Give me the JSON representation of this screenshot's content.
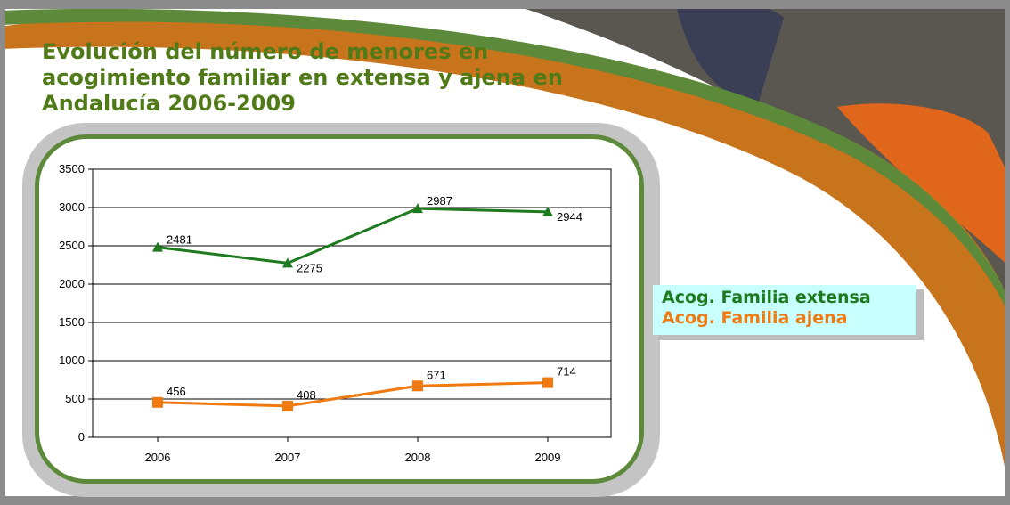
{
  "title": "Evolución del número de menores en acogimiento familiar en extensa y ajena en Andalucía 2006-2009",
  "colors": {
    "title": "#4f7a17",
    "extensa": "#1e7a1e",
    "ajena": "#f07a10",
    "frame_green": "#5c8a3a",
    "frame_gray": "#c4c4c4",
    "legend_bg": "#c8ffff"
  },
  "legend": {
    "items": [
      {
        "label": "Acog. Familia extensa",
        "color": "#1e7a1e"
      },
      {
        "label": "Acog. Familia ajena",
        "color": "#f07a10"
      }
    ]
  },
  "chart_data": {
    "type": "line",
    "categories": [
      "2006",
      "2007",
      "2008",
      "2009"
    ],
    "ylim": [
      0,
      3500
    ],
    "yticks": [
      0,
      500,
      1000,
      1500,
      2000,
      2500,
      3000,
      3500
    ],
    "grid": true,
    "series": [
      {
        "name": "Acog. Familia extensa",
        "values": [
          2481,
          2275,
          2987,
          2944
        ],
        "color": "#1e7a1e",
        "marker": "triangle"
      },
      {
        "name": "Acog. Familia ajena",
        "values": [
          456,
          408,
          671,
          714
        ],
        "color": "#f07a10",
        "marker": "square"
      }
    ],
    "legend_position": "right"
  }
}
